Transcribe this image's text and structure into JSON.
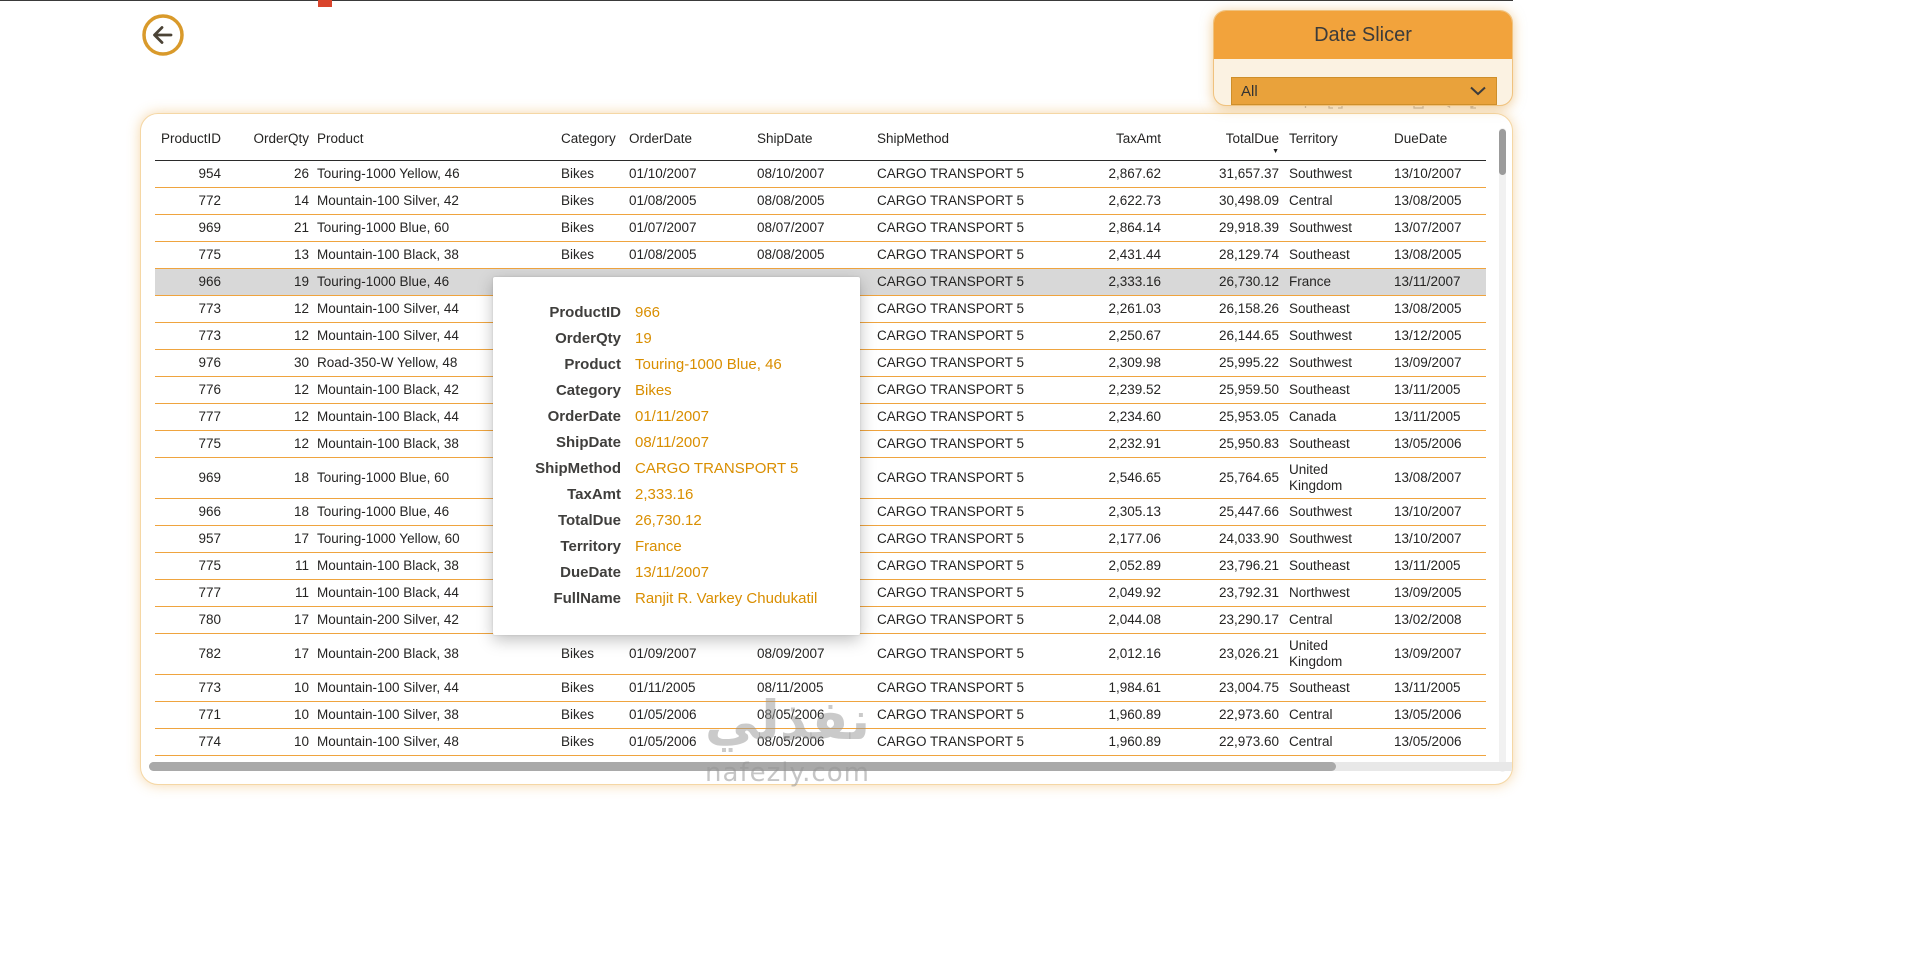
{
  "slicer": {
    "title": "Date Slicer",
    "value": "All"
  },
  "watermark": {
    "main": "نفذلي",
    "sub": "nafezly.com"
  },
  "visual_header": {
    "icons": [
      "pin-icon",
      "focus-mode-icon",
      "copy-icon",
      "filter-icon",
      "expand-icon"
    ]
  },
  "table": {
    "sort": {
      "column": "TotalDue",
      "direction": "descending"
    },
    "highlighted_row_index": 4,
    "columns": [
      {
        "key": "productId",
        "label": "ProductID"
      },
      {
        "key": "orderQty",
        "label": "OrderQty"
      },
      {
        "key": "product",
        "label": "Product"
      },
      {
        "key": "category",
        "label": "Category"
      },
      {
        "key": "orderDate",
        "label": "OrderDate"
      },
      {
        "key": "shipDate",
        "label": "ShipDate"
      },
      {
        "key": "shipMethod",
        "label": "ShipMethod"
      },
      {
        "key": "taxAmt",
        "label": "TaxAmt"
      },
      {
        "key": "totalDue",
        "label": "TotalDue"
      },
      {
        "key": "territory",
        "label": "Territory"
      },
      {
        "key": "dueDate",
        "label": "DueDate"
      }
    ],
    "rows": [
      [
        "954",
        "26",
        "Touring-1000 Yellow, 46",
        "Bikes",
        "01/10/2007",
        "08/10/2007",
        "CARGO TRANSPORT 5",
        "2,867.62",
        "31,657.37",
        "Southwest",
        "13/10/2007"
      ],
      [
        "772",
        "14",
        "Mountain-100 Silver, 42",
        "Bikes",
        "01/08/2005",
        "08/08/2005",
        "CARGO TRANSPORT 5",
        "2,622.73",
        "30,498.09",
        "Central",
        "13/08/2005"
      ],
      [
        "969",
        "21",
        "Touring-1000 Blue, 60",
        "Bikes",
        "01/07/2007",
        "08/07/2007",
        "CARGO TRANSPORT 5",
        "2,864.14",
        "29,918.39",
        "Southwest",
        "13/07/2007"
      ],
      [
        "775",
        "13",
        "Mountain-100 Black, 38",
        "Bikes",
        "01/08/2005",
        "08/08/2005",
        "CARGO TRANSPORT 5",
        "2,431.44",
        "28,129.74",
        "Southeast",
        "13/08/2005"
      ],
      [
        "966",
        "19",
        "Touring-1000 Blue, 46",
        "",
        "",
        "",
        "CARGO TRANSPORT 5",
        "2,333.16",
        "26,730.12",
        "France",
        "13/11/2007"
      ],
      [
        "773",
        "12",
        "Mountain-100 Silver, 44",
        "",
        "",
        "",
        "CARGO TRANSPORT 5",
        "2,261.03",
        "26,158.26",
        "Southeast",
        "13/08/2005"
      ],
      [
        "773",
        "12",
        "Mountain-100 Silver, 44",
        "",
        "",
        "",
        "CARGO TRANSPORT 5",
        "2,250.67",
        "26,144.65",
        "Southwest",
        "13/12/2005"
      ],
      [
        "976",
        "30",
        "Road-350-W Yellow, 48",
        "",
        "",
        "",
        "CARGO TRANSPORT 5",
        "2,309.98",
        "25,995.22",
        "Southwest",
        "13/09/2007"
      ],
      [
        "776",
        "12",
        "Mountain-100 Black, 42",
        "",
        "",
        "",
        "CARGO TRANSPORT 5",
        "2,239.52",
        "25,959.50",
        "Southeast",
        "13/11/2005"
      ],
      [
        "777",
        "12",
        "Mountain-100 Black, 44",
        "",
        "",
        "",
        "CARGO TRANSPORT 5",
        "2,234.60",
        "25,953.05",
        "Canada",
        "13/11/2005"
      ],
      [
        "775",
        "12",
        "Mountain-100 Black, 38",
        "",
        "",
        "",
        "CARGO TRANSPORT 5",
        "2,232.91",
        "25,950.83",
        "Southeast",
        "13/05/2006"
      ],
      [
        "969",
        "18",
        "Touring-1000 Blue, 60",
        "",
        "",
        "",
        "CARGO TRANSPORT 5",
        "2,546.65",
        "25,764.65",
        "United Kingdom",
        "13/08/2007"
      ],
      [
        "966",
        "18",
        "Touring-1000 Blue, 46",
        "",
        "",
        "",
        "CARGO TRANSPORT 5",
        "2,305.13",
        "25,447.66",
        "Southwest",
        "13/10/2007"
      ],
      [
        "957",
        "17",
        "Touring-1000 Yellow, 60",
        "",
        "",
        "",
        "CARGO TRANSPORT 5",
        "2,177.06",
        "24,033.90",
        "Southwest",
        "13/10/2007"
      ],
      [
        "775",
        "11",
        "Mountain-100 Black, 38",
        "",
        "",
        "",
        "CARGO TRANSPORT 5",
        "2,052.89",
        "23,796.21",
        "Southeast",
        "13/11/2005"
      ],
      [
        "777",
        "11",
        "Mountain-100 Black, 44",
        "",
        "",
        "",
        "CARGO TRANSPORT 5",
        "2,049.92",
        "23,792.31",
        "Northwest",
        "13/09/2005"
      ],
      [
        "780",
        "17",
        "Mountain-200 Silver, 42",
        "Bikes",
        "01/02/2008",
        "08/02/2008",
        "CARGO TRANSPORT 5",
        "2,044.08",
        "23,290.17",
        "Central",
        "13/02/2008"
      ],
      [
        "782",
        "17",
        "Mountain-200 Black, 38",
        "Bikes",
        "01/09/2007",
        "08/09/2007",
        "CARGO TRANSPORT 5",
        "2,012.16",
        "23,026.21",
        "United Kingdom",
        "13/09/2007"
      ],
      [
        "773",
        "10",
        "Mountain-100 Silver, 44",
        "Bikes",
        "01/11/2005",
        "08/11/2005",
        "CARGO TRANSPORT 5",
        "1,984.61",
        "23,004.75",
        "Southeast",
        "13/11/2005"
      ],
      [
        "771",
        "10",
        "Mountain-100 Silver, 38",
        "Bikes",
        "01/05/2006",
        "08/05/2006",
        "CARGO TRANSPORT 5",
        "1,960.89",
        "22,973.60",
        "Central",
        "13/05/2006"
      ],
      [
        "774",
        "10",
        "Mountain-100 Silver, 48",
        "Bikes",
        "01/05/2006",
        "08/05/2006",
        "CARGO TRANSPORT 5",
        "1,960.89",
        "22,973.60",
        "Central",
        "13/05/2006"
      ]
    ]
  },
  "tooltip": {
    "fields": [
      {
        "label": "ProductID",
        "value": "966"
      },
      {
        "label": "OrderQty",
        "value": "19"
      },
      {
        "label": "Product",
        "value": "Touring-1000 Blue, 46"
      },
      {
        "label": "Category",
        "value": "Bikes"
      },
      {
        "label": "OrderDate",
        "value": "01/11/2007"
      },
      {
        "label": "ShipDate",
        "value": "08/11/2007"
      },
      {
        "label": "ShipMethod",
        "value": "CARGO TRANSPORT 5"
      },
      {
        "label": "TaxAmt",
        "value": "2,333.16"
      },
      {
        "label": "TotalDue",
        "value": "26,730.12"
      },
      {
        "label": "Territory",
        "value": "France"
      },
      {
        "label": "DueDate",
        "value": "13/11/2007"
      },
      {
        "label": "FullName",
        "value": "Ranjit R. Varkey Chudukatil"
      }
    ]
  },
  "colors": {
    "accent": "#F2A33C",
    "accent_dark": "#E9A23B",
    "row_line": "#EFA43F",
    "value_orange": "#D98E00",
    "highlight_row": "#D8D8D8",
    "text": "#252423"
  }
}
